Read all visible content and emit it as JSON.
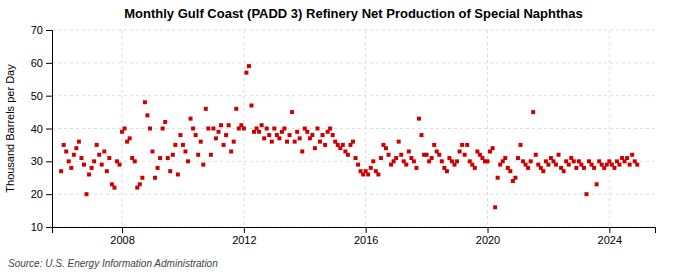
{
  "chart_data": {
    "type": "scatter",
    "title": "Monthly Gulf Coast (PADD 3) Refinery Net Production of Special Naphthas",
    "ylabel": "Thousand Barrels per Day",
    "source": "Source: U.S. Energy Information Administration",
    "color": "#cc0000",
    "marker": "square",
    "grid": true,
    "xlim": [
      2005.7,
      2025.5
    ],
    "xticks": [
      2008,
      2012,
      2016,
      2020,
      2024
    ],
    "ylim": [
      10,
      70
    ],
    "yticks": [
      10,
      20,
      30,
      40,
      50,
      60,
      70
    ],
    "x": [
      2006.0,
      2006.083,
      2006.167,
      2006.25,
      2006.333,
      2006.417,
      2006.5,
      2006.583,
      2006.667,
      2006.75,
      2006.833,
      2006.917,
      2007.0,
      2007.083,
      2007.167,
      2007.25,
      2007.333,
      2007.417,
      2007.5,
      2007.583,
      2007.667,
      2007.75,
      2007.833,
      2007.917,
      2008.0,
      2008.083,
      2008.167,
      2008.25,
      2008.333,
      2008.417,
      2008.5,
      2008.583,
      2008.667,
      2008.75,
      2008.833,
      2008.917,
      2009.0,
      2009.083,
      2009.167,
      2009.25,
      2009.333,
      2009.417,
      2009.5,
      2009.583,
      2009.667,
      2009.75,
      2009.833,
      2009.917,
      2010.0,
      2010.083,
      2010.167,
      2010.25,
      2010.333,
      2010.417,
      2010.5,
      2010.583,
      2010.667,
      2010.75,
      2010.833,
      2010.917,
      2011.0,
      2011.083,
      2011.167,
      2011.25,
      2011.333,
      2011.417,
      2011.5,
      2011.583,
      2011.667,
      2011.75,
      2011.833,
      2011.917,
      2012.0,
      2012.083,
      2012.167,
      2012.25,
      2012.333,
      2012.417,
      2012.5,
      2012.583,
      2012.667,
      2012.75,
      2012.833,
      2012.917,
      2013.0,
      2013.083,
      2013.167,
      2013.25,
      2013.333,
      2013.417,
      2013.5,
      2013.583,
      2013.667,
      2013.75,
      2013.833,
      2013.917,
      2014.0,
      2014.083,
      2014.167,
      2014.25,
      2014.333,
      2014.417,
      2014.5,
      2014.583,
      2014.667,
      2014.75,
      2014.833,
      2014.917,
      2015.0,
      2015.083,
      2015.167,
      2015.25,
      2015.333,
      2015.417,
      2015.5,
      2015.583,
      2015.667,
      2015.75,
      2015.833,
      2015.917,
      2016.0,
      2016.083,
      2016.167,
      2016.25,
      2016.333,
      2016.417,
      2016.5,
      2016.583,
      2016.667,
      2016.75,
      2016.833,
      2016.917,
      2017.0,
      2017.083,
      2017.167,
      2017.25,
      2017.333,
      2017.417,
      2017.5,
      2017.583,
      2017.667,
      2017.75,
      2017.833,
      2017.917,
      2018.0,
      2018.083,
      2018.167,
      2018.25,
      2018.333,
      2018.417,
      2018.5,
      2018.583,
      2018.667,
      2018.75,
      2018.833,
      2018.917,
      2019.0,
      2019.083,
      2019.167,
      2019.25,
      2019.333,
      2019.417,
      2019.5,
      2019.583,
      2019.667,
      2019.75,
      2019.833,
      2019.917,
      2020.0,
      2020.083,
      2020.167,
      2020.25,
      2020.333,
      2020.417,
      2020.5,
      2020.583,
      2020.667,
      2020.75,
      2020.833,
      2020.917,
      2021.0,
      2021.083,
      2021.167,
      2021.25,
      2021.333,
      2021.417,
      2021.5,
      2021.583,
      2021.667,
      2021.75,
      2021.833,
      2021.917,
      2022.0,
      2022.083,
      2022.167,
      2022.25,
      2022.333,
      2022.417,
      2022.5,
      2022.583,
      2022.667,
      2022.75,
      2022.833,
      2022.917,
      2023.0,
      2023.083,
      2023.167,
      2023.25,
      2023.333,
      2023.417,
      2023.5,
      2023.583,
      2023.667,
      2023.75,
      2023.833,
      2023.917,
      2024.0,
      2024.083,
      2024.167,
      2024.25,
      2024.333,
      2024.417,
      2024.5,
      2024.583,
      2024.667,
      2024.75,
      2024.833,
      2024.917
    ],
    "values": [
      27,
      35,
      33,
      30,
      28,
      32,
      34,
      36,
      31,
      29,
      20,
      26,
      28,
      30,
      35,
      32,
      29,
      33,
      27,
      31,
      23,
      22,
      30,
      29,
      39,
      40,
      36,
      37,
      31,
      30,
      22,
      23,
      25,
      48,
      44,
      40,
      33,
      25,
      28,
      31,
      40,
      42,
      31,
      27,
      32,
      35,
      26,
      38,
      35,
      33,
      30,
      43,
      40,
      38,
      32,
      36,
      29,
      46,
      40,
      32,
      40,
      37,
      39,
      41,
      35,
      38,
      41,
      33,
      36,
      46,
      40,
      41,
      40,
      57,
      59,
      47,
      39,
      40,
      39,
      41,
      37,
      40,
      38,
      36,
      40,
      38,
      37,
      39,
      40,
      36,
      38,
      45,
      36,
      39,
      37,
      33,
      40,
      39,
      37,
      38,
      34,
      40,
      36,
      38,
      35,
      39,
      40,
      38,
      36,
      35,
      34,
      35,
      33,
      32,
      35,
      36,
      31,
      29,
      27,
      26,
      27,
      26,
      28,
      30,
      27,
      26,
      31,
      35,
      34,
      32,
      29,
      30,
      31,
      36,
      32,
      30,
      29,
      33,
      31,
      30,
      28,
      43,
      38,
      32,
      32,
      30,
      31,
      35,
      33,
      32,
      30,
      28,
      27,
      31,
      30,
      29,
      30,
      33,
      35,
      32,
      35,
      30,
      29,
      28,
      33,
      32,
      31,
      30,
      30,
      33,
      34,
      16,
      25,
      29,
      30,
      31,
      28,
      27,
      24,
      25,
      31,
      35,
      30,
      29,
      28,
      30,
      45,
      32,
      29,
      28,
      27,
      30,
      29,
      31,
      30,
      29,
      32,
      28,
      27,
      30,
      29,
      31,
      30,
      28,
      30,
      29,
      28,
      20,
      30,
      29,
      28,
      23,
      30,
      29,
      28,
      29,
      30,
      29,
      28,
      30,
      29,
      31,
      30,
      31,
      29,
      32,
      30,
      29
    ]
  }
}
